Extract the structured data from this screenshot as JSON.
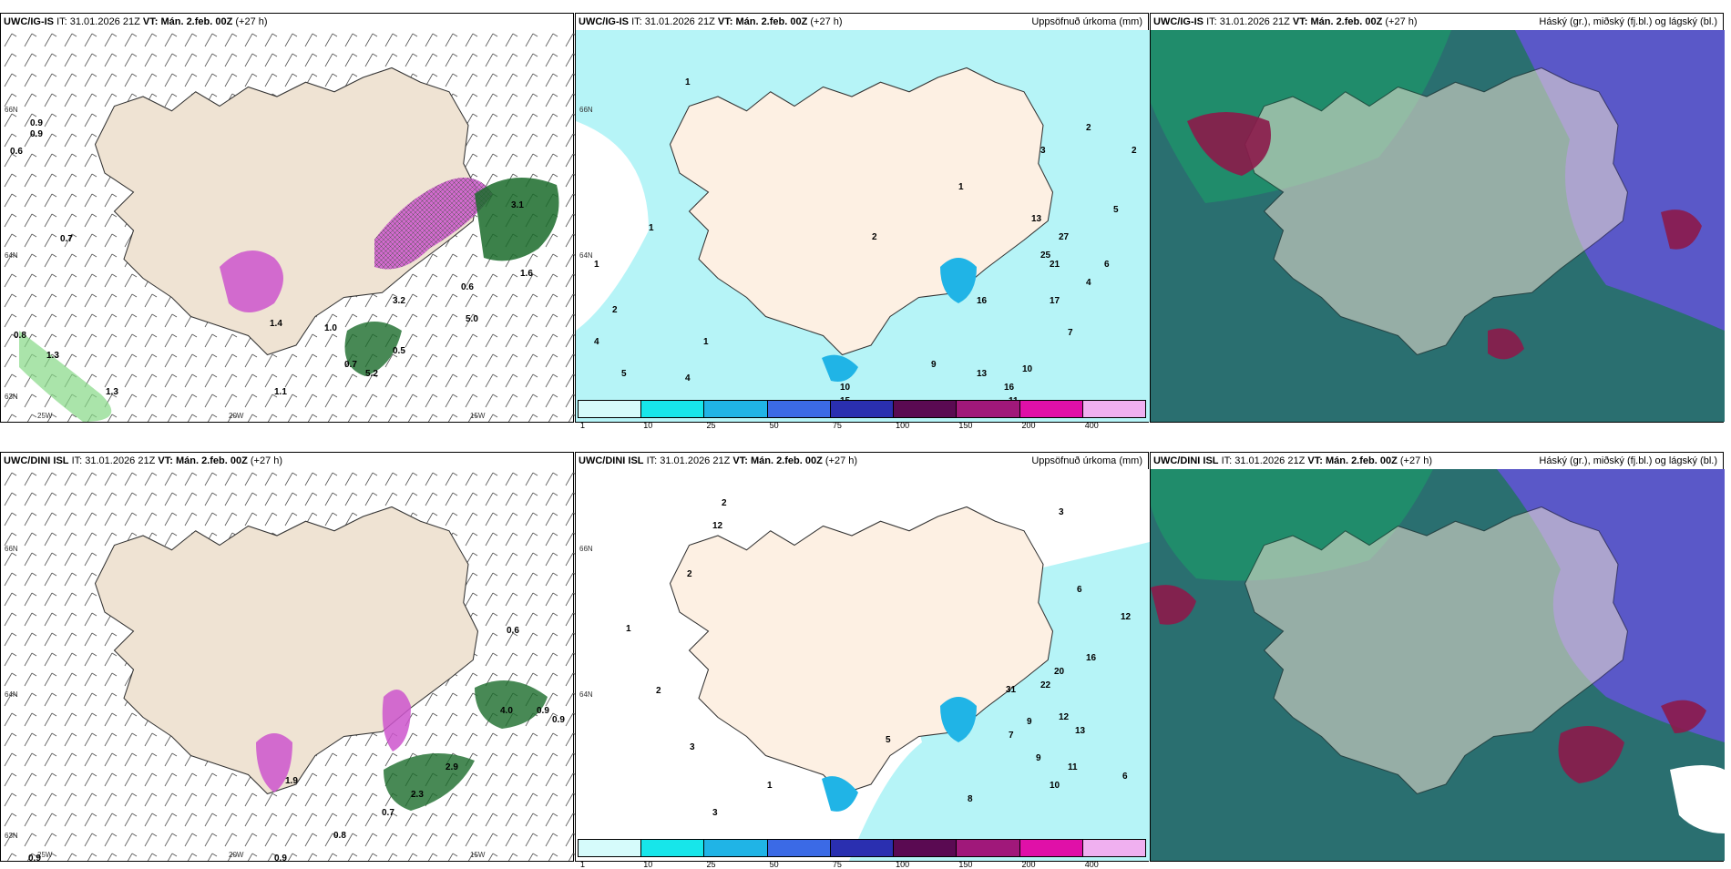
{
  "colors": {
    "land": "#efe3d3",
    "sea_precip_light": "#b6f4f7",
    "cloud_high": "#1f8f6a",
    "cloud_mid": "#5a58c8",
    "cloud_low": "#2a6f70",
    "snow_magenta": "#cc55cc",
    "rain_green": "#1a6b2a"
  },
  "panels": [
    {
      "id": "p1",
      "model": "UWC/IG-IS",
      "it_label": "IT:",
      "it_value": "31.01.2026 21Z",
      "vt_label": "VT:",
      "vt_value": "Mán. 2.feb. 00Z",
      "lead": "(+27 h)",
      "title_right": "",
      "axis_labels": [
        "66N",
        "64N",
        "63N",
        "25W",
        "20W",
        "15W"
      ],
      "values": [
        "0.9",
        "0.9",
        "0.6",
        "0.7",
        "0.8",
        "1.4",
        "1.0",
        "3.1",
        "3.2",
        "0.5",
        "1.3",
        "1.6",
        "0.6",
        "0.7",
        "5.2",
        "5.0",
        "1.1",
        "1.3"
      ]
    },
    {
      "id": "p2",
      "model": "UWC/IG-IS",
      "it_label": "IT:",
      "it_value": "31.01.2026 21Z",
      "vt_label": "VT:",
      "vt_value": "Mán. 2.feb. 00Z",
      "lead": "(+27 h)",
      "title_right": "Uppsöfnuð úrkoma (mm)",
      "axis_labels": [
        "66N",
        "64N"
      ],
      "values": [
        "1",
        "2",
        "1",
        "1",
        "2",
        "1",
        "4",
        "2",
        "3",
        "1",
        "5",
        "4",
        "10",
        "13",
        "25",
        "21",
        "27",
        "16",
        "17",
        "7",
        "9",
        "10",
        "15",
        "13",
        "16",
        "11",
        "4",
        "5",
        "6",
        "2"
      ],
      "colorbar": {
        "ticks": [
          "1",
          "10",
          "25",
          "50",
          "75",
          "100",
          "150",
          "200",
          "400"
        ],
        "colors": [
          "#d6fbfb",
          "#17e6ea",
          "#20b4e6",
          "#3b6ae6",
          "#2a2fb0",
          "#5a0a52",
          "#a0187a",
          "#e010a8",
          "#f0b0f0"
        ]
      }
    },
    {
      "id": "p3",
      "model": "UWC/IG-IS",
      "it_label": "IT:",
      "it_value": "31.01.2026 21Z",
      "vt_label": "VT:",
      "vt_value": "Mán. 2.feb. 00Z",
      "lead": "(+27 h)",
      "title_right": "Háský (gr.), miðský (fj.bl.) og lágský (bl.)"
    },
    {
      "id": "p4",
      "model": "UWC/DINI ISL",
      "it_label": "IT:",
      "it_value": "31.01.2026 21Z",
      "vt_label": "VT:",
      "vt_value": "Mán. 2.feb. 00Z",
      "lead": "(+27 h)",
      "title_right": "",
      "axis_labels": [
        "66N",
        "64N",
        "63N",
        "25W",
        "20W",
        "15W"
      ],
      "values": [
        "0.6",
        "4.0",
        "0.9",
        "0.9",
        "2.9",
        "0.7",
        "2.3",
        "0.8",
        "0.9",
        "0.9",
        "1.9"
      ]
    },
    {
      "id": "p5",
      "model": "UWC/DINI ISL",
      "it_label": "IT:",
      "it_value": "31.01.2026 21Z",
      "vt_label": "VT:",
      "vt_value": "Mán. 2.feb. 00Z",
      "lead": "(+27 h)",
      "title_right": "Uppsöfnuð úrkoma (mm)",
      "axis_labels": [
        "66N",
        "64N"
      ],
      "values": [
        "2",
        "3",
        "12",
        "2",
        "1",
        "3",
        "2",
        "6",
        "12",
        "16",
        "20",
        "31",
        "22",
        "9",
        "13",
        "12",
        "11",
        "7",
        "9",
        "10",
        "8",
        "5",
        "6",
        "3",
        "1"
      ],
      "colorbar": {
        "ticks": [
          "1",
          "10",
          "25",
          "50",
          "75",
          "100",
          "150",
          "200",
          "400"
        ],
        "colors": [
          "#d6fbfb",
          "#17e6ea",
          "#20b4e6",
          "#3b6ae6",
          "#2a2fb0",
          "#5a0a52",
          "#a0187a",
          "#e010a8",
          "#f0b0f0"
        ]
      }
    },
    {
      "id": "p6",
      "model": "UWC/DINI ISL",
      "it_label": "IT:",
      "it_value": "31.01.2026 21Z",
      "vt_label": "VT:",
      "vt_value": "Mán. 2.feb. 00Z",
      "lead": "(+27 h)",
      "title_right": "Háský (gr.), miðský (fj.bl.) og lágský (bl.)"
    }
  ]
}
